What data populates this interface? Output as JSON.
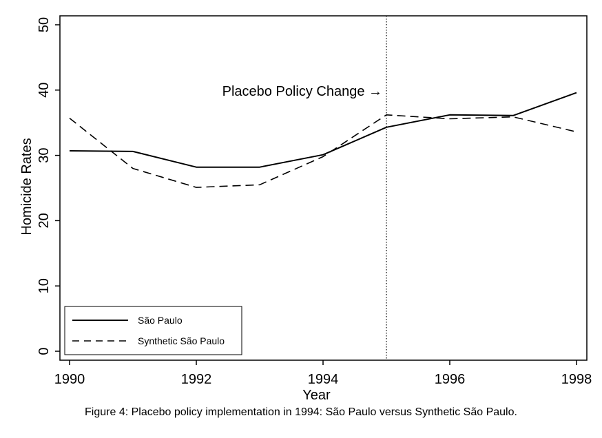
{
  "caption": "Figure 4: Placebo policy implementation in 1994: São Paulo versus Synthetic São Paulo.",
  "chart_data": {
    "type": "line",
    "title": "",
    "xlabel": "Year",
    "ylabel": "Homicide Rates",
    "xlim": [
      1990,
      1998
    ],
    "ylim": [
      0,
      50
    ],
    "xticks": [
      1990,
      1992,
      1994,
      1996,
      1998
    ],
    "yticks": [
      0,
      10,
      20,
      30,
      40,
      50
    ],
    "grid": false,
    "legend_position": "bottom-left",
    "x": [
      1990,
      1991,
      1992,
      1993,
      1994,
      1995,
      1996,
      1997,
      1998
    ],
    "series": [
      {
        "name": "São Paulo",
        "style": "solid",
        "color": "#000000",
        "values": [
          30.7,
          30.6,
          28.2,
          28.2,
          30.1,
          34.3,
          36.2,
          36.1,
          39.6
        ]
      },
      {
        "name": "Synthetic São Paulo",
        "style": "dashed",
        "color": "#000000",
        "values": [
          35.7,
          28.0,
          25.1,
          25.5,
          29.8,
          36.2,
          35.6,
          35.9,
          33.6
        ]
      }
    ],
    "annotations": [
      {
        "text": "Placebo Policy Change →",
        "x": 1995,
        "y": 40,
        "type": "vertical-dotted-line-label"
      }
    ],
    "vline_x": 1995
  }
}
